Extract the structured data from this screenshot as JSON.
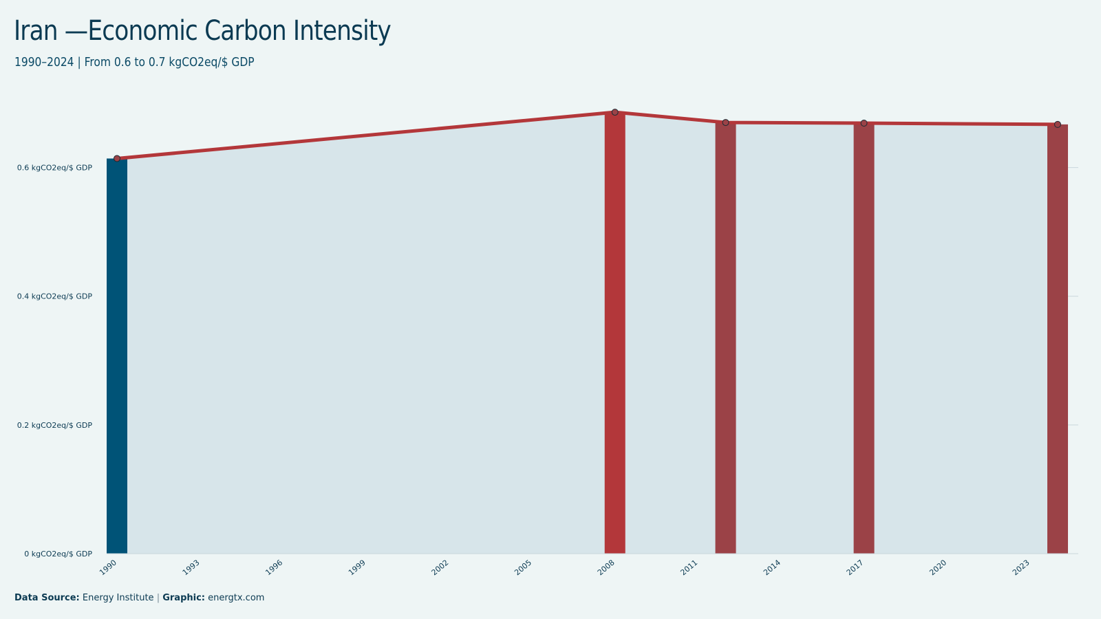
{
  "header": {
    "title": "Iran —Economic Carbon Intensity",
    "subtitle": "1990–2024 | From 0.6 to 0.7 kgCO2eq/$ GDP"
  },
  "footer": {
    "source_label": "Data Source:",
    "source_value": "Energy Institute",
    "separator": "|",
    "graphic_label": "Graphic:",
    "graphic_value": "energtx.com"
  },
  "colors": {
    "background": "#eef5f5",
    "area_fill": "#d7e5ea",
    "line": "#b3373a",
    "bar_first": "#005377",
    "bar_peak": "#b3373a",
    "bar_other": "#9b4247",
    "grid": "#c9d6dc",
    "text": "#0b3a52"
  },
  "chart_data": {
    "type": "line",
    "x": [
      1990,
      2008,
      2012,
      2017,
      2024
    ],
    "y": [
      0.614,
      0.686,
      0.67,
      0.669,
      0.667
    ],
    "area_under_line": true,
    "highlight_bars": [
      {
        "x": 1990,
        "y": 0.614,
        "role": "first"
      },
      {
        "x": 2008,
        "y": 0.686,
        "role": "peak"
      },
      {
        "x": 2012,
        "y": 0.67,
        "role": "other"
      },
      {
        "x": 2017,
        "y": 0.669,
        "role": "other"
      },
      {
        "x": 2024,
        "y": 0.667,
        "role": "other"
      }
    ],
    "xlim": [
      1990,
      2024
    ],
    "ylim": [
      0,
      0.7
    ],
    "x_ticks": [
      1990,
      1993,
      1996,
      1999,
      2002,
      2005,
      2008,
      2011,
      2014,
      2017,
      2020,
      2023
    ],
    "y_ticks": [
      0,
      0.2,
      0.4,
      0.6
    ],
    "y_tick_labels": [
      "0 kgCO2eq/$ GDP",
      "0.2 kgCO2eq/$ GDP",
      "0.4 kgCO2eq/$ GDP",
      "0.6 kgCO2eq/$ GDP"
    ],
    "grid": true,
    "legend": "none"
  }
}
